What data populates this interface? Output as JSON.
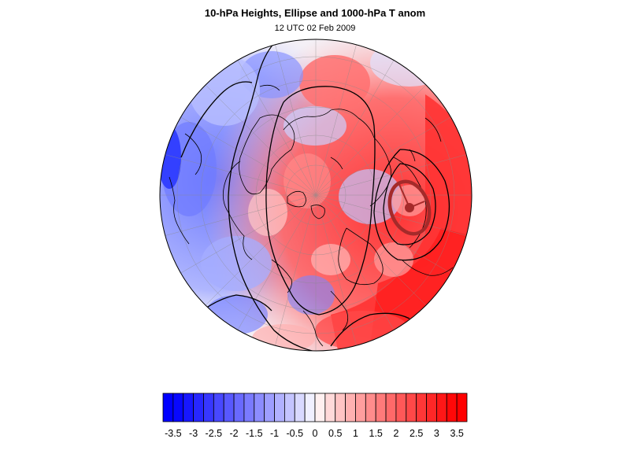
{
  "figure": {
    "title": "10-hPa Heights, Ellipse and 1000-hPa T anom",
    "subtitle": "12 UTC 02 Feb 2009"
  },
  "map": {
    "projection": "orthographic (north polar)",
    "anomaly_field": "1000-hPa T anom",
    "contours": "10-hPa Heights",
    "ellipse_color": "#a52a2a"
  },
  "colorbar": {
    "tick_labels": [
      "-3.5",
      "-3",
      "-2.5",
      "-2",
      "-1.5",
      "-1",
      "-0.5",
      "0",
      "0.5",
      "1",
      "1.5",
      "2",
      "2.5",
      "3",
      "3.5"
    ],
    "levels": [
      -3.75,
      -3.5,
      -3.25,
      -3,
      -2.75,
      -2.5,
      -2.25,
      -2,
      -1.75,
      -1.5,
      -1.25,
      -1,
      -0.75,
      -0.5,
      -0.25,
      0,
      0.25,
      0.5,
      0.75,
      1,
      1.25,
      1.5,
      1.75,
      2,
      2.25,
      2.5,
      2.75,
      3,
      3.25,
      3.5,
      3.75
    ],
    "negative_color": "#0000ff",
    "positive_color": "#ff0000",
    "neutral_color": "#ffffff"
  }
}
